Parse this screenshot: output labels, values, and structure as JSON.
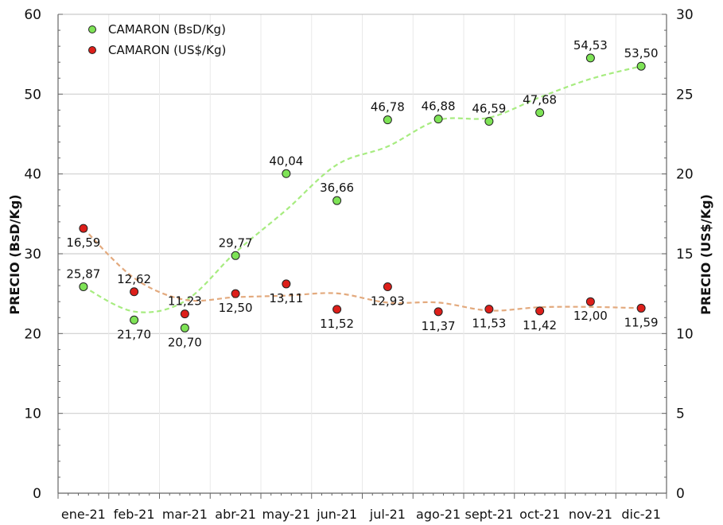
{
  "chart_data": {
    "type": "scatter",
    "categories": [
      "ene-21",
      "feb-21",
      "mar-21",
      "abr-21",
      "may-21",
      "jun-21",
      "jul-21",
      "ago-21",
      "sept-21",
      "oct-21",
      "nov-21",
      "dic-21"
    ],
    "series": [
      {
        "name": "CAMARON (BsD/Kg)",
        "axis": "left",
        "color": "#7ee356",
        "trend_color": "#a7ec80",
        "values": [
          25.87,
          21.7,
          20.7,
          29.77,
          40.04,
          36.66,
          46.78,
          46.88,
          46.59,
          47.68,
          54.53,
          53.5
        ],
        "labels": [
          "25,87",
          "21,70",
          "20,70",
          "29,77",
          "40,04",
          "36,66",
          "46,78",
          "46,88",
          "46,59",
          "47,68",
          "54,53",
          "53,50"
        ]
      },
      {
        "name": "CAMARON (US$/Kg)",
        "axis": "right",
        "color": "#dd1f1a",
        "trend_color": "#e3aa7e",
        "values": [
          16.59,
          12.62,
          11.23,
          12.5,
          13.11,
          11.52,
          12.93,
          11.37,
          11.53,
          11.42,
          12.0,
          11.59
        ],
        "labels": [
          "16,59",
          "12,62",
          "11,23",
          "12,50",
          "13,11",
          "11,52",
          "12,93",
          "11,37",
          "11,53",
          "11,42",
          "12,00",
          "11,59"
        ]
      }
    ],
    "ylabel_left": "PRECIO (BsD/Kg)",
    "ylabel_right": "PRECIO (US$/Kg)",
    "ylim_left": [
      0,
      60
    ],
    "ylim_right": [
      0,
      30
    ],
    "yticks_left": [
      "0",
      "10",
      "20",
      "30",
      "40",
      "50",
      "60"
    ],
    "yticks_right": [
      "0",
      "5",
      "10",
      "15",
      "20",
      "25",
      "30"
    ],
    "grid": true,
    "legend_position": "top-left",
    "trendlines": "dashed"
  }
}
